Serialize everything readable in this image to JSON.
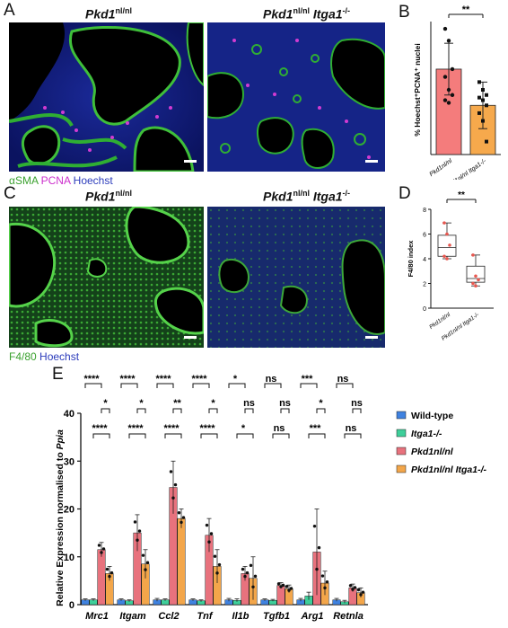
{
  "panel_labels": {
    "a": "A",
    "b": "B",
    "c": "C",
    "d": "D",
    "e": "E"
  },
  "top_row": {
    "left_title_main": "Pkd1",
    "left_title_sup": "nl/nl",
    "right_title_main": "Pkd1",
    "right_title_sup": "nl/nl",
    "right_title_gene": "Itga1",
    "right_title_gene_sup": "-/-",
    "stain_1": "αSMA",
    "stain_2": "PCNA",
    "stain_3": "Hoechst",
    "stain_colors": {
      "stain_1": "#3aa12e",
      "stain_2": "#cc2fcc",
      "stain_3": "#2b3bbb"
    }
  },
  "middle_row": {
    "left_title_main": "Pkd1",
    "left_title_sup": "nl/nl",
    "right_title_main": "Pkd1",
    "right_title_sup": "nl/nl",
    "right_title_gene": "Itga1",
    "right_title_gene_sup": "-/-",
    "stain_1": "F4/80",
    "stain_2": "Hoechst",
    "stain_colors": {
      "stain_1": "#3aa12e",
      "stain_2": "#2b3bbb"
    }
  },
  "chart_data": [
    {
      "panel": "B",
      "type": "bar",
      "ylabel": "% Hoechst⁺PCNA⁺ nuclei",
      "ylim": [
        0,
        25
      ],
      "categories": [
        "Pkd1nl/nl",
        "Pkd1nl/nl Itga1-/-"
      ],
      "values": [
        16.5,
        9.5
      ],
      "errors": [
        5.0,
        4.5
      ],
      "colors": [
        "#f47c7c",
        "#f6a94c"
      ],
      "points": [
        [
          24.3,
          22.0,
          16.5,
          15.0,
          12.5,
          11.5,
          10.5,
          10.0
        ],
        [
          14.0,
          12.5,
          11.5,
          11.0,
          10.5,
          9.5,
          8.0,
          6.5,
          2.5
        ]
      ],
      "significance": "**"
    },
    {
      "panel": "D",
      "type": "box",
      "ylabel": "F4/80 index",
      "ylim": [
        0,
        8
      ],
      "yticks": [
        0,
        2,
        4,
        6,
        8
      ],
      "categories": [
        "Pkd1nl/nl",
        "Pkd1nl/nl Itga1-/-"
      ],
      "boxes": [
        {
          "min": 4.0,
          "q1": 4.2,
          "median": 4.9,
          "q3": 5.9,
          "max": 6.9
        },
        {
          "min": 1.8,
          "q1": 2.1,
          "median": 2.4,
          "q3": 3.4,
          "max": 4.3
        }
      ],
      "points": [
        [
          6.9,
          6.0,
          5.1,
          4.2,
          4.0
        ],
        [
          4.3,
          2.6,
          2.3,
          2.0,
          1.8
        ]
      ],
      "point_color": "#e8574f",
      "significance": "**"
    },
    {
      "panel": "E",
      "type": "bar",
      "ylabel_main": "Relative Expression normalised to ",
      "ylabel_gene": "Ppia",
      "ylim": [
        0,
        40
      ],
      "yticks": [
        0,
        10,
        20,
        30,
        40
      ],
      "categories": [
        "Mrc1",
        "Itgam",
        "Ccl2",
        "Tnf",
        "Il1b",
        "Tgfb1",
        "Arg1",
        "Retnla"
      ],
      "series": [
        {
          "name": "Wild-type",
          "color": "#3f82e0",
          "values": [
            1.0,
            1.0,
            1.0,
            1.0,
            1.0,
            1.0,
            1.0,
            1.0
          ],
          "errors": [
            0.2,
            0.2,
            0.3,
            0.2,
            0.3,
            0.2,
            0.3,
            0.3
          ]
        },
        {
          "name": "Itga1-/-",
          "color": "#3ecf9a",
          "values": [
            1.0,
            0.8,
            1.0,
            0.8,
            0.9,
            0.9,
            1.8,
            0.6
          ],
          "errors": [
            0.2,
            0.2,
            0.2,
            0.2,
            0.3,
            0.2,
            0.8,
            0.3
          ]
        },
        {
          "name": "Pkd1nl/nl",
          "color": "#e8727d",
          "values": [
            11.5,
            15.0,
            24.5,
            14.5,
            6.5,
            4.0,
            11.0,
            3.5
          ],
          "errors": [
            1.5,
            3.8,
            5.5,
            3.5,
            1.5,
            0.6,
            9.0,
            0.8
          ]
        },
        {
          "name": "Pkd1nl/nl Itga1-/-",
          "color": "#f3a64a",
          "values": [
            6.5,
            8.5,
            18.0,
            8.0,
            5.5,
            3.3,
            4.5,
            2.5
          ],
          "errors": [
            1.5,
            3.0,
            2.0,
            3.5,
            4.5,
            0.8,
            2.5,
            1.0
          ]
        }
      ],
      "significance": {
        "top_wt_vs_pkd1": [
          "****",
          "****",
          "****",
          "****",
          "*",
          "ns",
          "***",
          "ns"
        ],
        "pkd1_vs_double": [
          "*",
          "*",
          "**",
          "*",
          "ns",
          "ns",
          "*",
          "ns"
        ],
        "itga1_vs_double": [
          "****",
          "****",
          "****",
          "****",
          "*",
          "ns",
          "***",
          "ns"
        ]
      },
      "legend": [
        "Wild-type",
        "Itga1-/-",
        "Pkd1nl/nl",
        "Pkd1nl/nl Itga1-/-"
      ]
    }
  ]
}
